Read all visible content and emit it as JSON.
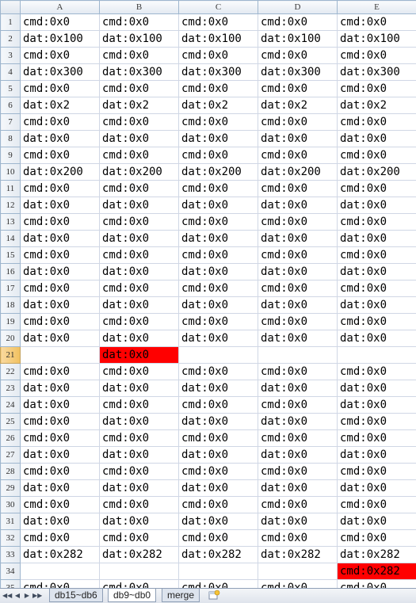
{
  "columns": [
    "A",
    "B",
    "C",
    "D",
    "E"
  ],
  "rows": [
    {
      "num": "1",
      "cells": [
        "cmd:0x0",
        "cmd:0x0",
        "cmd:0x0",
        "cmd:0x0",
        "cmd:0x0"
      ]
    },
    {
      "num": "2",
      "cells": [
        "dat:0x100",
        "dat:0x100",
        "dat:0x100",
        "dat:0x100",
        "dat:0x100"
      ]
    },
    {
      "num": "3",
      "cells": [
        "cmd:0x0",
        "cmd:0x0",
        "cmd:0x0",
        "cmd:0x0",
        "cmd:0x0"
      ]
    },
    {
      "num": "4",
      "cells": [
        "dat:0x300",
        "dat:0x300",
        "dat:0x300",
        "dat:0x300",
        "dat:0x300"
      ]
    },
    {
      "num": "5",
      "cells": [
        "cmd:0x0",
        "cmd:0x0",
        "cmd:0x0",
        "cmd:0x0",
        "cmd:0x0"
      ]
    },
    {
      "num": "6",
      "cells": [
        "dat:0x2",
        "dat:0x2",
        "dat:0x2",
        "dat:0x2",
        "dat:0x2"
      ]
    },
    {
      "num": "7",
      "cells": [
        "cmd:0x0",
        "cmd:0x0",
        "cmd:0x0",
        "cmd:0x0",
        "cmd:0x0"
      ]
    },
    {
      "num": "8",
      "cells": [
        "dat:0x0",
        "dat:0x0",
        "dat:0x0",
        "dat:0x0",
        "dat:0x0"
      ]
    },
    {
      "num": "9",
      "cells": [
        "cmd:0x0",
        "cmd:0x0",
        "cmd:0x0",
        "cmd:0x0",
        "cmd:0x0"
      ]
    },
    {
      "num": "10",
      "cells": [
        "dat:0x200",
        "dat:0x200",
        "dat:0x200",
        "dat:0x200",
        "dat:0x200"
      ]
    },
    {
      "num": "11",
      "cells": [
        "cmd:0x0",
        "cmd:0x0",
        "cmd:0x0",
        "cmd:0x0",
        "cmd:0x0"
      ]
    },
    {
      "num": "12",
      "cells": [
        "dat:0x0",
        "dat:0x0",
        "dat:0x0",
        "dat:0x0",
        "dat:0x0"
      ]
    },
    {
      "num": "13",
      "cells": [
        "cmd:0x0",
        "cmd:0x0",
        "cmd:0x0",
        "cmd:0x0",
        "cmd:0x0"
      ]
    },
    {
      "num": "14",
      "cells": [
        "dat:0x0",
        "dat:0x0",
        "dat:0x0",
        "dat:0x0",
        "dat:0x0"
      ]
    },
    {
      "num": "15",
      "cells": [
        "cmd:0x0",
        "cmd:0x0",
        "cmd:0x0",
        "cmd:0x0",
        "cmd:0x0"
      ]
    },
    {
      "num": "16",
      "cells": [
        "dat:0x0",
        "dat:0x0",
        "dat:0x0",
        "dat:0x0",
        "dat:0x0"
      ]
    },
    {
      "num": "17",
      "cells": [
        "cmd:0x0",
        "cmd:0x0",
        "cmd:0x0",
        "cmd:0x0",
        "cmd:0x0"
      ]
    },
    {
      "num": "18",
      "cells": [
        "dat:0x0",
        "dat:0x0",
        "dat:0x0",
        "dat:0x0",
        "dat:0x0"
      ]
    },
    {
      "num": "19",
      "cells": [
        "cmd:0x0",
        "cmd:0x0",
        "cmd:0x0",
        "cmd:0x0",
        "cmd:0x0"
      ]
    },
    {
      "num": "20",
      "cells": [
        "dat:0x0",
        "dat:0x0",
        "dat:0x0",
        "dat:0x0",
        "dat:0x0"
      ]
    },
    {
      "num": "21",
      "cells": [
        "",
        "dat:0x0",
        "",
        "",
        ""
      ],
      "highlight": [
        1
      ],
      "selected": true
    },
    {
      "num": "22",
      "cells": [
        "cmd:0x0",
        "cmd:0x0",
        "cmd:0x0",
        "cmd:0x0",
        "cmd:0x0"
      ]
    },
    {
      "num": "23",
      "cells": [
        "dat:0x0",
        "dat:0x0",
        "dat:0x0",
        "dat:0x0",
        "dat:0x0"
      ]
    },
    {
      "num": "24",
      "cells": [
        "dat:0x0",
        "cmd:0x0",
        "cmd:0x0",
        "cmd:0x0",
        "dat:0x0"
      ]
    },
    {
      "num": "25",
      "cells": [
        "cmd:0x0",
        "dat:0x0",
        "dat:0x0",
        "dat:0x0",
        "cmd:0x0"
      ]
    },
    {
      "num": "26",
      "cells": [
        "cmd:0x0",
        "cmd:0x0",
        "cmd:0x0",
        "cmd:0x0",
        "cmd:0x0"
      ]
    },
    {
      "num": "27",
      "cells": [
        "dat:0x0",
        "dat:0x0",
        "dat:0x0",
        "dat:0x0",
        "dat:0x0"
      ]
    },
    {
      "num": "28",
      "cells": [
        "cmd:0x0",
        "cmd:0x0",
        "cmd:0x0",
        "cmd:0x0",
        "cmd:0x0"
      ]
    },
    {
      "num": "29",
      "cells": [
        "dat:0x0",
        "dat:0x0",
        "dat:0x0",
        "dat:0x0",
        "dat:0x0"
      ]
    },
    {
      "num": "30",
      "cells": [
        "cmd:0x0",
        "cmd:0x0",
        "cmd:0x0",
        "cmd:0x0",
        "cmd:0x0"
      ]
    },
    {
      "num": "31",
      "cells": [
        "dat:0x0",
        "dat:0x0",
        "dat:0x0",
        "dat:0x0",
        "dat:0x0"
      ]
    },
    {
      "num": "32",
      "cells": [
        "cmd:0x0",
        "cmd:0x0",
        "cmd:0x0",
        "cmd:0x0",
        "cmd:0x0"
      ]
    },
    {
      "num": "33",
      "cells": [
        "dat:0x282",
        "dat:0x282",
        "dat:0x282",
        "dat:0x282",
        "dat:0x282"
      ]
    },
    {
      "num": "34",
      "cells": [
        "",
        "",
        "",
        "",
        "cmd:0x282"
      ],
      "highlight": [
        4
      ]
    },
    {
      "num": "35",
      "cells": [
        "cmd:0x0",
        "cmd:0x0",
        "cmd:0x0",
        "cmd:0x0",
        "cmd:0x0"
      ]
    }
  ],
  "highlight_color": "#ff0000",
  "sheet_nav": {
    "first": "first-sheet-icon",
    "prev": "prev-sheet-icon",
    "next": "next-sheet-icon",
    "last": "last-sheet-icon"
  },
  "tabs": [
    {
      "label": "db15~db6",
      "active": false
    },
    {
      "label": "db9~db0",
      "active": true
    },
    {
      "label": "merge",
      "active": false
    }
  ]
}
